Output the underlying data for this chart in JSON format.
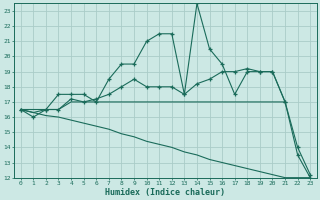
{
  "xlabel": "Humidex (Indice chaleur)",
  "bg_color": "#cce8e4",
  "grid_color": "#aaccc8",
  "line_color": "#1a6b5a",
  "xlim": [
    -0.5,
    23.5
  ],
  "ylim": [
    12,
    23.5
  ],
  "xtick_labels": [
    "0",
    "1",
    "2",
    "3",
    "4",
    "5",
    "6",
    "7",
    "8",
    "9",
    "10",
    "11",
    "12",
    "13",
    "14",
    "15",
    "16",
    "17",
    "18",
    "19",
    "20",
    "21",
    "22",
    "23"
  ],
  "ytick_labels": [
    "12",
    "13",
    "14",
    "15",
    "16",
    "17",
    "18",
    "19",
    "20",
    "21",
    "22",
    "23"
  ],
  "xticks": [
    0,
    1,
    2,
    3,
    4,
    5,
    6,
    7,
    8,
    9,
    10,
    11,
    12,
    13,
    14,
    15,
    16,
    17,
    18,
    19,
    20,
    21,
    22,
    23
  ],
  "yticks": [
    12,
    13,
    14,
    15,
    16,
    17,
    18,
    19,
    20,
    21,
    22,
    23
  ],
  "line1_x": [
    0,
    1,
    2,
    3,
    4,
    5,
    6,
    7,
    8,
    9,
    10,
    11,
    12,
    13,
    14,
    15,
    16,
    17,
    18,
    19,
    20,
    21,
    22,
    23
  ],
  "line1_y": [
    16.5,
    16.0,
    16.5,
    17.5,
    17.5,
    17.5,
    17.0,
    18.5,
    19.5,
    19.5,
    21.0,
    21.5,
    21.5,
    17.5,
    23.5,
    20.5,
    19.5,
    17.5,
    19.0,
    19.0,
    19.0,
    17.0,
    13.5,
    12.0
  ],
  "line2_x": [
    0,
    2,
    3,
    4,
    5,
    6,
    7,
    8,
    9,
    10,
    11,
    12,
    13,
    14,
    15,
    16,
    17,
    18,
    19,
    20,
    21,
    22,
    23
  ],
  "line2_y": [
    16.5,
    16.5,
    16.5,
    17.2,
    17.0,
    17.2,
    17.5,
    18.0,
    18.5,
    18.0,
    18.0,
    18.0,
    17.5,
    18.2,
    18.5,
    19.0,
    19.0,
    19.2,
    19.0,
    19.0,
    17.0,
    14.0,
    12.2
  ],
  "line3_x": [
    0,
    1,
    2,
    3,
    4,
    5,
    6,
    7,
    8,
    9,
    10,
    11,
    12,
    13,
    14,
    15,
    16,
    17,
    18,
    19,
    20,
    21
  ],
  "line3_y": [
    16.5,
    16.3,
    16.5,
    16.5,
    17.0,
    17.0,
    17.0,
    17.0,
    17.0,
    17.0,
    17.0,
    17.0,
    17.0,
    17.0,
    17.0,
    17.0,
    17.0,
    17.0,
    17.0,
    17.0,
    17.0,
    17.0
  ],
  "line4_x": [
    0,
    1,
    2,
    3,
    4,
    5,
    6,
    7,
    8,
    9,
    10,
    11,
    12,
    13,
    14,
    15,
    16,
    17,
    18,
    19,
    20,
    21,
    22,
    23
  ],
  "line4_y": [
    16.5,
    16.3,
    16.1,
    16.0,
    15.8,
    15.6,
    15.4,
    15.2,
    14.9,
    14.7,
    14.4,
    14.2,
    14.0,
    13.7,
    13.5,
    13.2,
    13.0,
    12.8,
    12.6,
    12.4,
    12.2,
    12.0,
    12.0,
    12.0
  ]
}
